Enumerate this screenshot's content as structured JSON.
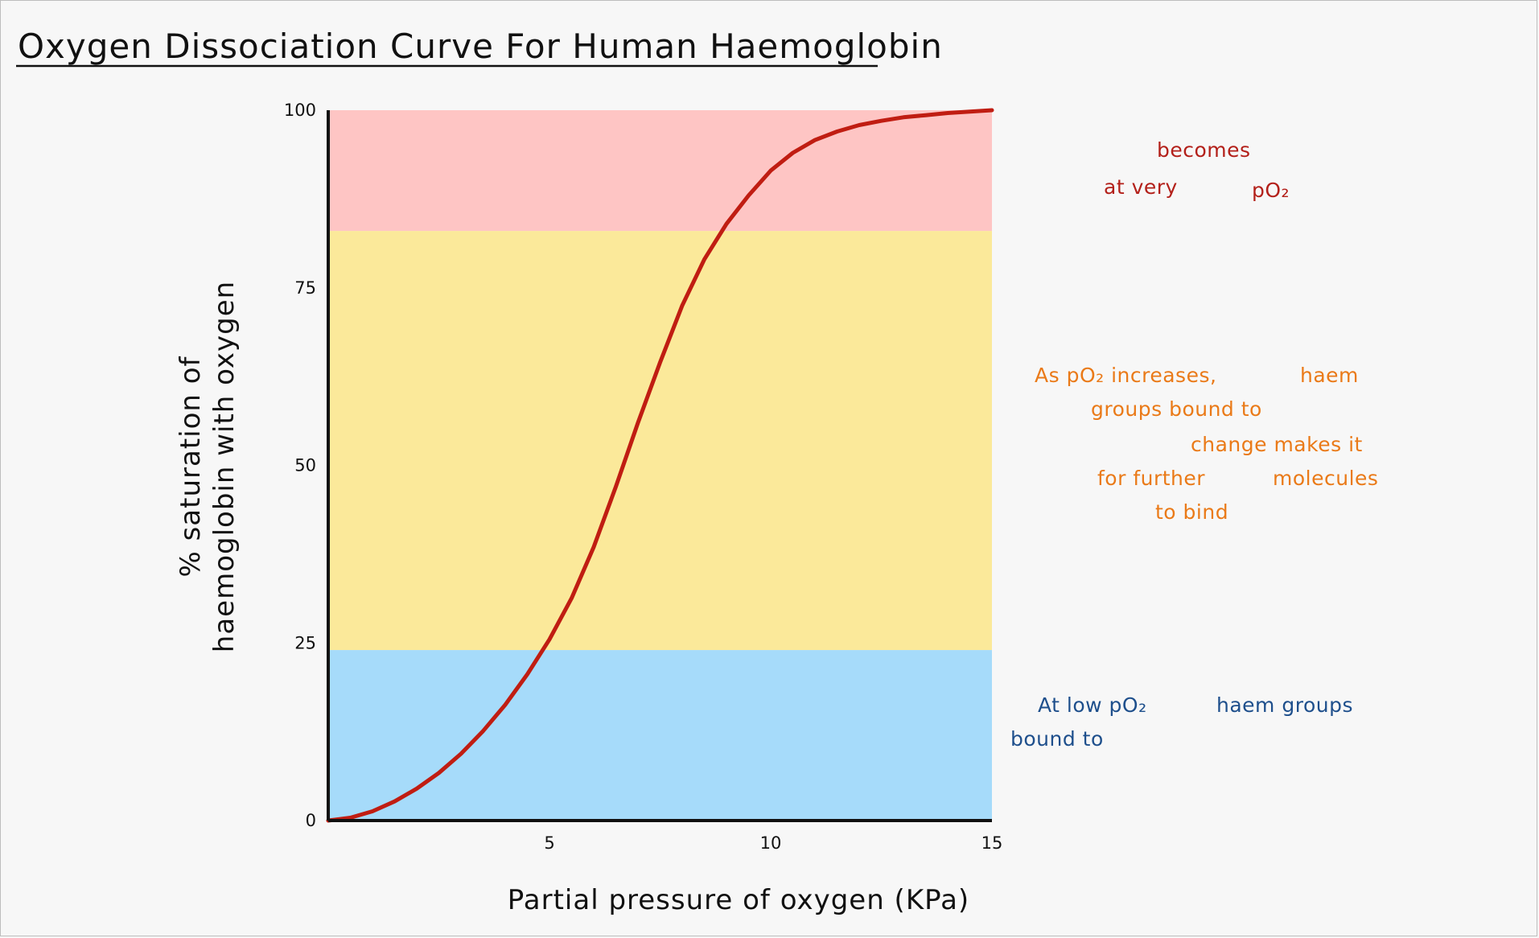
{
  "chart_data": {
    "type": "line",
    "title": "Oxygen Dissociation Curve For Human Haemoglobin",
    "xlabel": "Partial pressure of oxygen (KPa)",
    "ylabel_lines": [
      "% saturation of",
      "haemoglobin with oxygen"
    ],
    "xlim": [
      0,
      15
    ],
    "ylim": [
      0,
      100
    ],
    "x_ticks": [
      5,
      10,
      15
    ],
    "y_ticks": [
      0,
      25,
      50,
      75,
      100
    ],
    "bands": [
      {
        "from": 83,
        "to": 100,
        "color": "#fec5c4"
      },
      {
        "from": 24,
        "to": 83,
        "color": "#fbe99a"
      },
      {
        "from": 0,
        "to": 24,
        "color": "#a6dbfa"
      }
    ],
    "line_color": "#c01d12",
    "series": [
      {
        "x": [
          0,
          0.5,
          1,
          1.5,
          2,
          2.5,
          3,
          3.5,
          4,
          4.5,
          5,
          5.5,
          6,
          6.5,
          7,
          7.5,
          8,
          8.5,
          9,
          9.5,
          10,
          10.5,
          11,
          11.5,
          12,
          12.5,
          13,
          13.5,
          14,
          14.5,
          15
        ],
        "values": [
          0,
          0.4,
          1.3,
          2.7,
          4.5,
          6.7,
          9.4,
          12.6,
          16.3,
          20.6,
          25.5,
          31.3,
          38.5,
          47.0,
          56.0,
          64.5,
          72.5,
          79.0,
          84.0,
          88.0,
          91.5,
          94.0,
          95.8,
          97.0,
          97.9,
          98.5,
          99.0,
          99.3,
          99.6,
          99.8,
          100
        ]
      }
    ]
  },
  "annotations": {
    "red": [
      "becomes",
      "at very",
      "pO₂"
    ],
    "orange": [
      "As pO₂ increases,",
      "haem",
      "groups bound to",
      "change makes it",
      "for further",
      "molecules",
      "to bind"
    ],
    "blue": [
      "At low pO₂",
      "haem groups",
      "bound to"
    ]
  }
}
